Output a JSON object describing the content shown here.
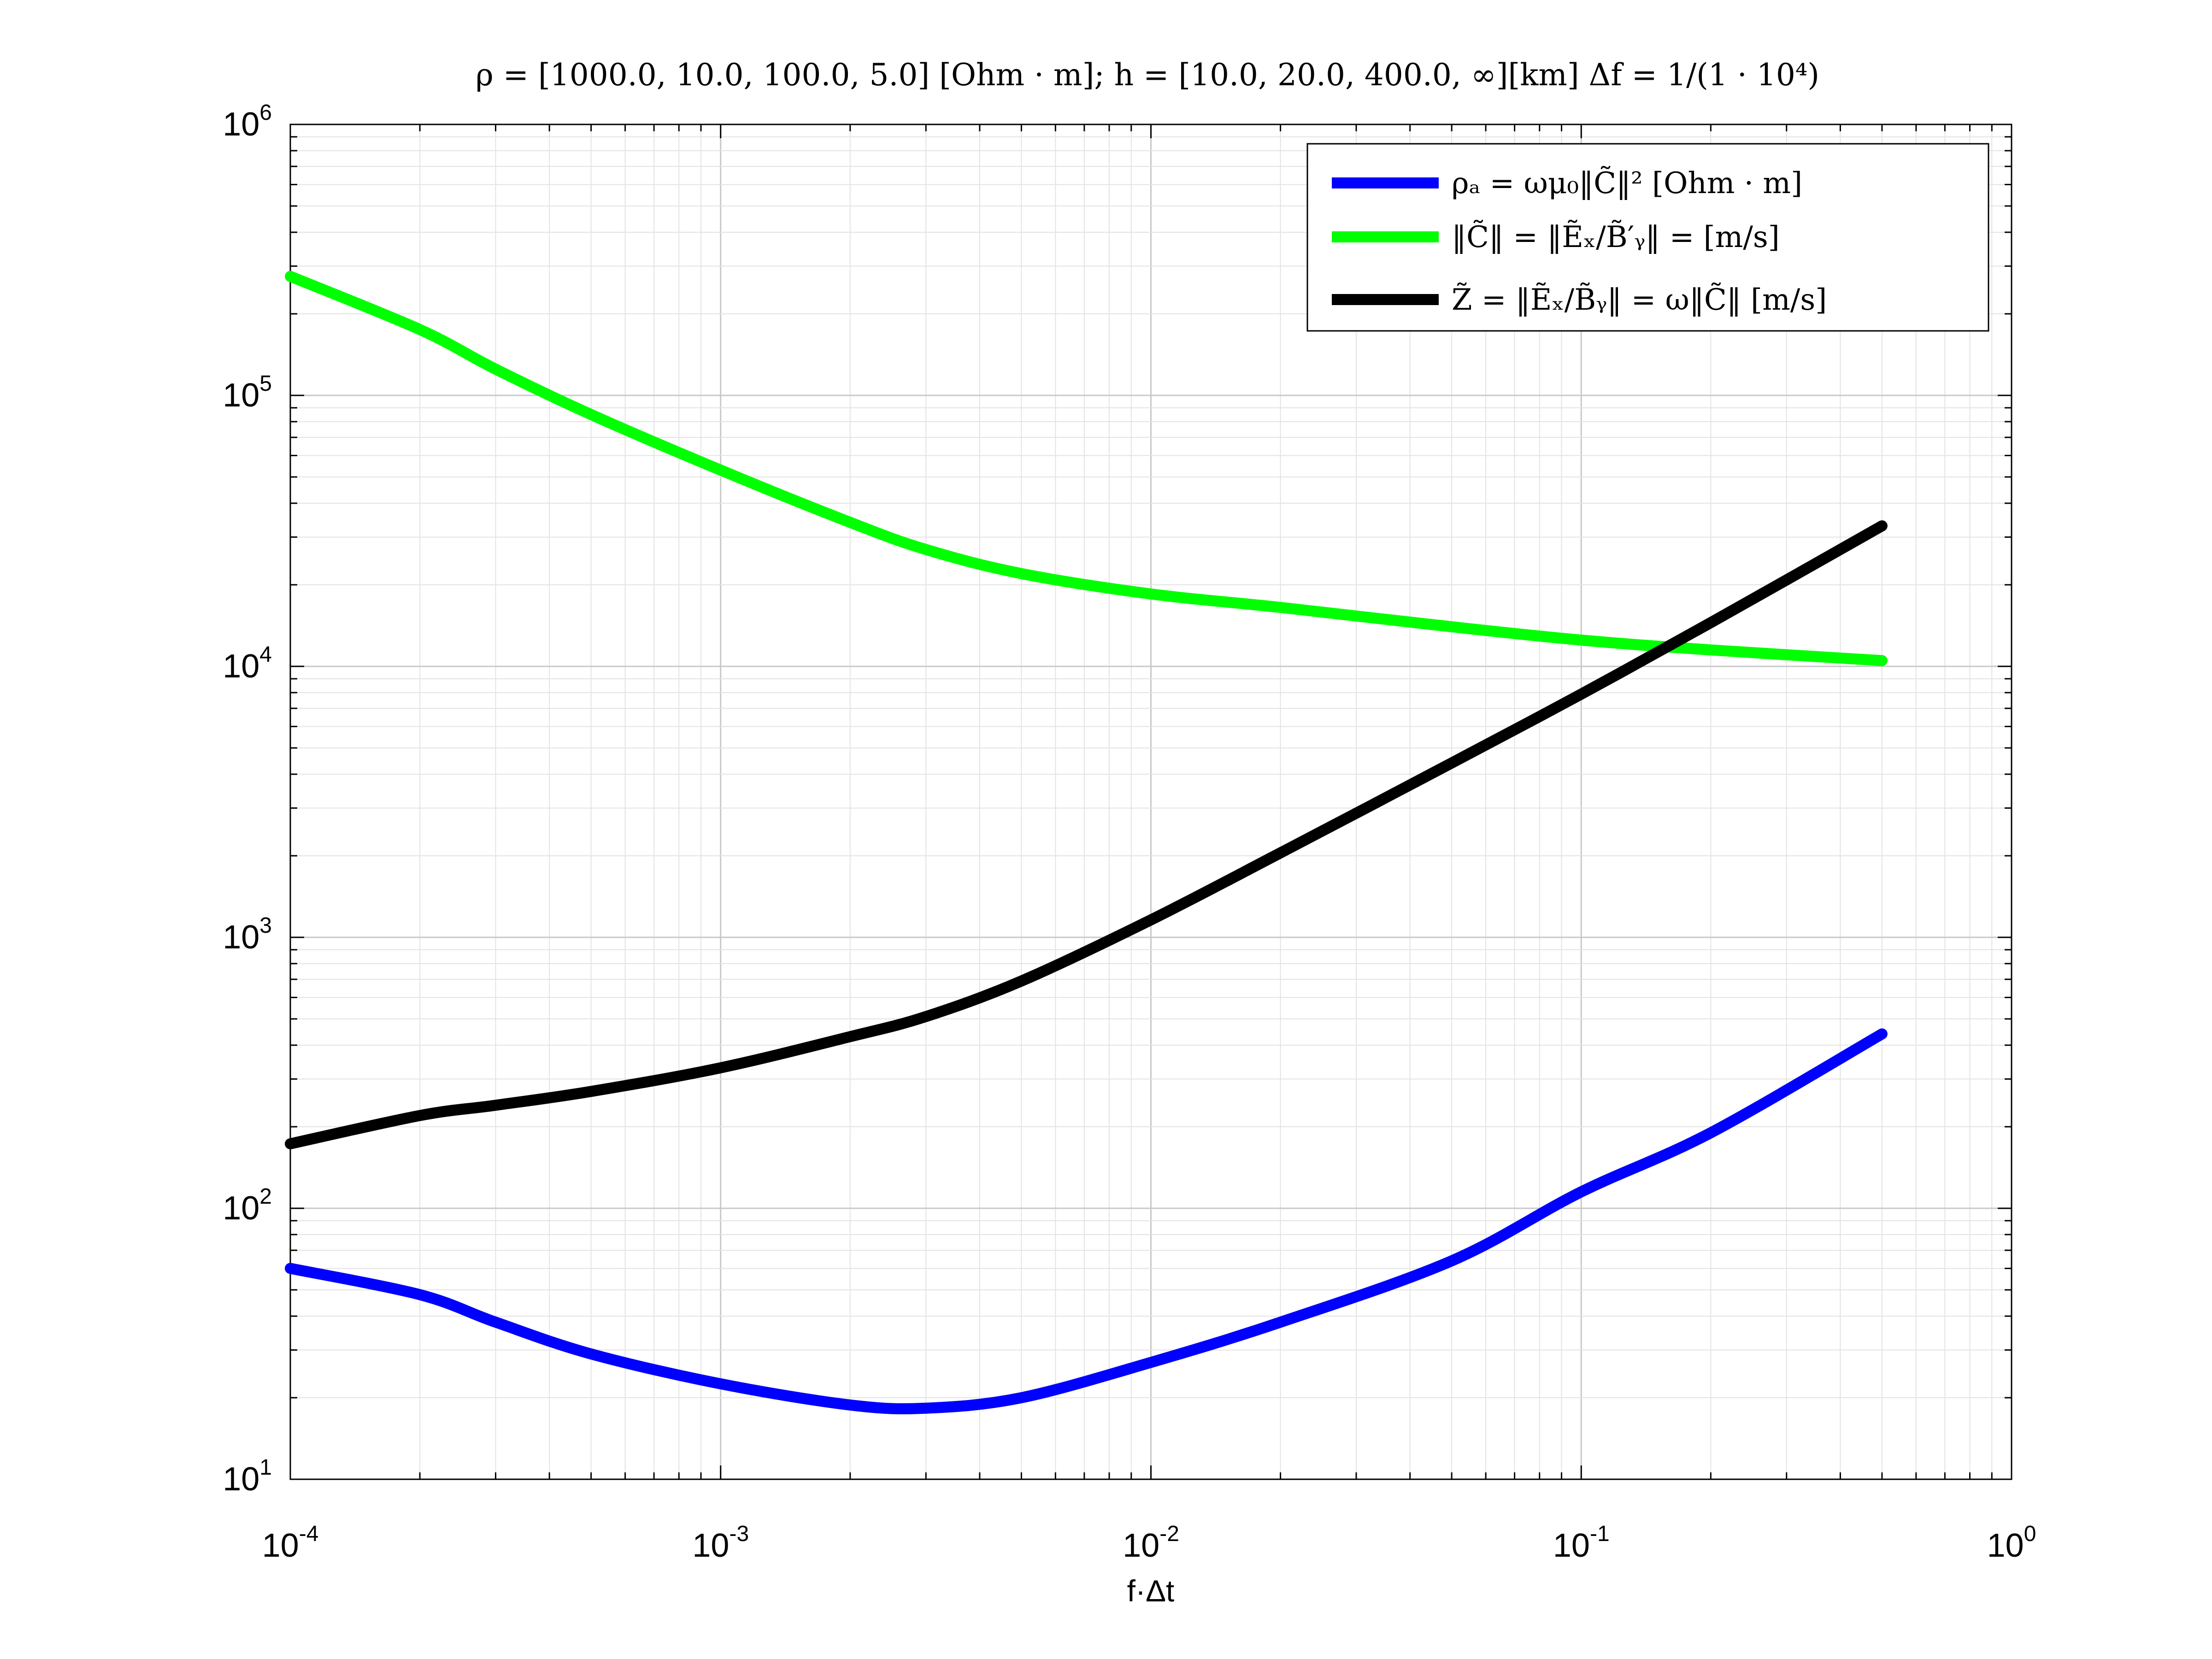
{
  "chart_data": {
    "type": "line",
    "title": "ρ = [1000.0, 10.0, 100.0, 5.0] [Ohm · m];     h = [10.0, 20.0, 400.0, ∞][km]     Δf = 1/(1 · 10⁴)",
    "xlabel": "f·Δt",
    "ylabel": "",
    "xscale": "log",
    "yscale": "log",
    "xlim": [
      0.0001,
      1
    ],
    "ylim": [
      10,
      1000000
    ],
    "grid": true,
    "legend_position": "top-right",
    "x_ticks": [
      {
        "base": "10",
        "exp": "-4"
      },
      {
        "base": "10",
        "exp": "-3"
      },
      {
        "base": "10",
        "exp": "-2"
      },
      {
        "base": "10",
        "exp": "-1"
      },
      {
        "base": "10",
        "exp": "0"
      }
    ],
    "y_ticks": [
      {
        "base": "10",
        "exp": "1"
      },
      {
        "base": "10",
        "exp": "2"
      },
      {
        "base": "10",
        "exp": "3"
      },
      {
        "base": "10",
        "exp": "4"
      },
      {
        "base": "10",
        "exp": "5"
      },
      {
        "base": "10",
        "exp": "6"
      }
    ],
    "series": [
      {
        "name": "ρₐ = ωμ₀‖C̃‖²     [Ohm · m]",
        "color": "#0000ff",
        "x": [
          0.0001,
          0.0002,
          0.0003,
          0.0005,
          0.001,
          0.002,
          0.003,
          0.005,
          0.01,
          0.02,
          0.05,
          0.1,
          0.2,
          0.5
        ],
        "y": [
          60,
          48,
          38,
          29,
          22.5,
          18.8,
          18.3,
          20,
          27,
          38,
          64,
          115,
          190,
          440
        ]
      },
      {
        "name": "‖C̃‖ = ‖Ẽₓ/B̃′ᵧ‖ =      [m/s]",
        "color": "#00ff00",
        "x": [
          0.0001,
          0.0002,
          0.0003,
          0.0005,
          0.001,
          0.002,
          0.003,
          0.005,
          0.01,
          0.02,
          0.05,
          0.1,
          0.2,
          0.5
        ],
        "y": [
          275000,
          175000,
          125000,
          85000,
          53000,
          34000,
          27000,
          22000,
          18500,
          16500,
          14000,
          12500,
          11500,
          10500
        ]
      },
      {
        "name": "Z̃ = ‖Ẽₓ/B̃ᵧ‖ = ω‖C̃‖     [m/s]",
        "color": "#000000",
        "x": [
          0.0001,
          0.0002,
          0.0003,
          0.0005,
          0.001,
          0.002,
          0.003,
          0.005,
          0.01,
          0.02,
          0.05,
          0.1,
          0.2,
          0.5
        ],
        "y": [
          173,
          220,
          240,
          270,
          330,
          430,
          510,
          690,
          1160,
          2050,
          4400,
          7900,
          14500,
          33000
        ]
      }
    ]
  }
}
